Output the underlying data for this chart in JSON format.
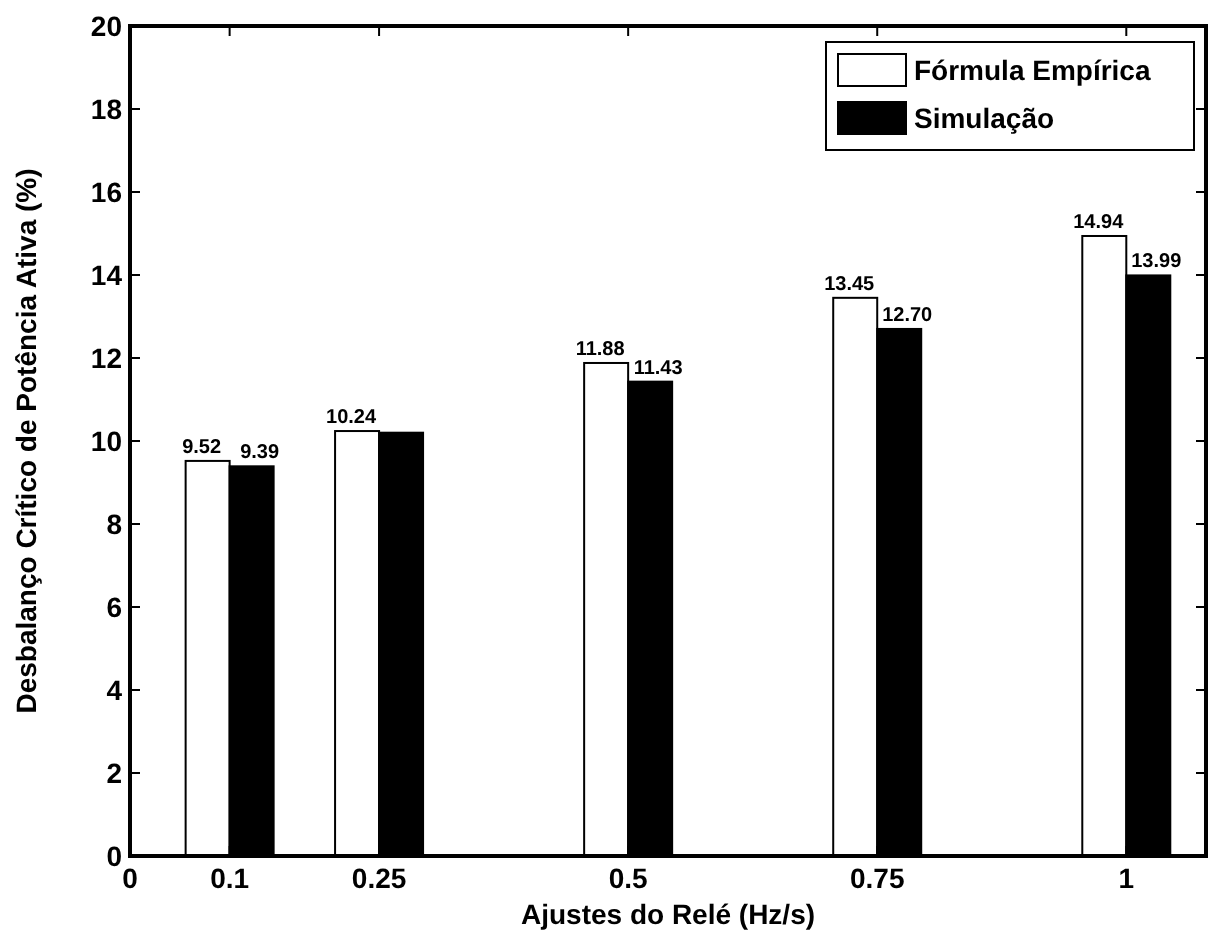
{
  "chart_data": {
    "type": "bar",
    "xlabel": "Ajustes do Relé (Hz/s)",
    "ylabel": "Desbalanço Crítico de Potência Ativa (%)",
    "x": [
      0.1,
      0.25,
      0.5,
      0.75,
      1
    ],
    "xlim": [
      0,
      1.08
    ],
    "xticks": [
      0,
      0.1,
      0.25,
      0.5,
      0.75,
      1
    ],
    "ylim": [
      0,
      20
    ],
    "yticks": [
      0,
      2,
      4,
      6,
      8,
      10,
      12,
      14,
      16,
      18,
      20
    ],
    "series": [
      {
        "name": "Fórmula Empírica",
        "color": "#ffffff",
        "values": [
          9.52,
          10.24,
          11.88,
          13.45,
          14.94
        ],
        "value_labels": [
          "9.52",
          "10.24",
          "11.88",
          "13.45",
          "14.94"
        ]
      },
      {
        "name": "Simulação",
        "color": "#000000",
        "values": [
          9.39,
          10.2,
          11.43,
          12.7,
          13.99
        ],
        "value_labels": [
          "9.39",
          null,
          "11.43",
          "12.70",
          "13.99"
        ]
      }
    ],
    "legend": "top right",
    "grid": false
  }
}
